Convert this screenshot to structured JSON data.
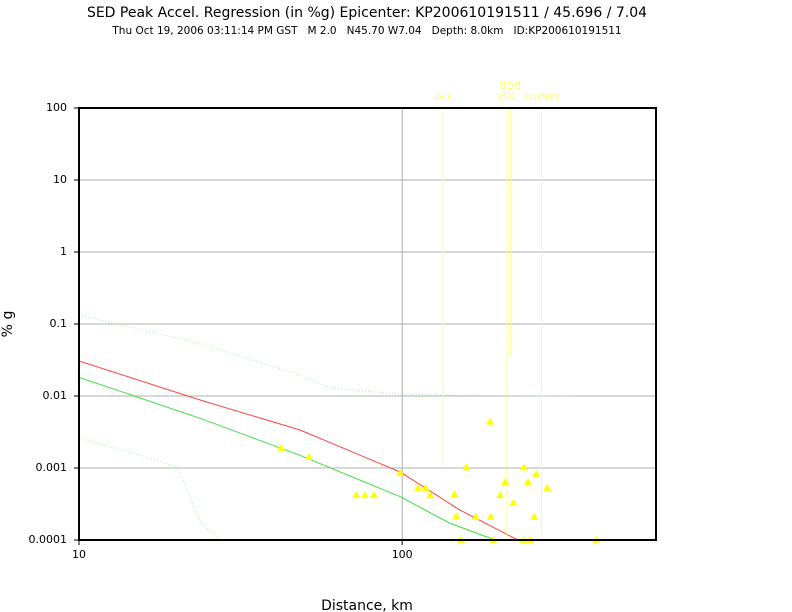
{
  "chart_data": {
    "type": "scatter",
    "title": "SED Peak Accel. Regression (in %g) Epicenter: KP200610191511 / 45.696 / 7.04",
    "subtitle": "Thu Oct 19, 2006 03:11:14 PM GST   M 2.0   N45.70 W7.04   Depth: 8.0km   ID:KP200610191511",
    "xlabel": "Distance, km",
    "ylabel": "% g",
    "log_x": true,
    "log_y": true,
    "grid": true,
    "xlim": [
      10,
      610
    ],
    "ylim": [
      0.0001,
      100
    ],
    "xticks": [
      10,
      100
    ],
    "yticks": [
      0.0001,
      0.001,
      0.01,
      0.1,
      1,
      10,
      100
    ],
    "color": "#ffff00",
    "x": [
      42.2,
      51.5,
      72.1,
      76.7,
      81.8,
      98.6,
      112,
      118,
      122,
      145,
      147,
      152,
      158,
      169,
      187,
      188,
      191,
      201,
      208,
      221,
      237,
      238,
      245,
      249,
      256,
      260,
      281,
      399
    ],
    "values": [
      0.0019,
      0.00142,
      0.00042,
      0.00042,
      0.00042,
      0.00085,
      0.00053,
      0.00053,
      0.00042,
      0.00043,
      0.000215,
      0.0001,
      0.00102,
      0.00021,
      0.0044,
      0.00021,
      0.0001,
      0.00042,
      0.00064,
      0.00033,
      0.0001,
      0.00102,
      0.00064,
      0.0001,
      0.00021,
      0.00083,
      0.00053,
      0.0001
    ],
    "lines": [
      {
        "color": "#ff4444",
        "dash": false,
        "x": [
          10,
          23.7,
          48.3,
          98.6,
          151,
          228
        ],
        "values": [
          0.0306,
          0.0088,
          0.00337,
          0.00088,
          0.00026,
          0.0001
        ]
      },
      {
        "color": "#44dd44",
        "dash": false,
        "x": [
          10,
          23.7,
          48.3,
          98.6,
          140,
          194
        ],
        "values": [
          0.0182,
          0.0049,
          0.0015,
          0.0004,
          0.000172,
          0.0001
        ]
      },
      {
        "color": "#aaeeaa",
        "dash": true,
        "x": [
          10,
          23.7,
          48.3,
          59.8,
          98.6,
          201,
          331
        ],
        "values": [
          0.133,
          0.054,
          0.0196,
          0.0129,
          0.0106,
          0.0101,
          0.01
        ]
      },
      {
        "color": "#aaeeaa",
        "dash": true,
        "x": [
          10,
          15.5,
          20.2,
          23.7,
          27.3
        ],
        "values": [
          0.0026,
          0.0015,
          0.00102,
          0.000178,
          0.0001
        ]
      }
    ],
    "station_color": "#ffff66",
    "stations": [
      {
        "name": "DOI",
        "x": 134,
        "y": 0.001
      },
      {
        "name": "VDL",
        "x": 211,
        "y": 0.0001
      },
      {
        "name": "BDB",
        "x": 216,
        "y": 0.037
      },
      {
        "name": "FUORN",
        "x": 270,
        "y": 0.0001
      }
    ]
  }
}
